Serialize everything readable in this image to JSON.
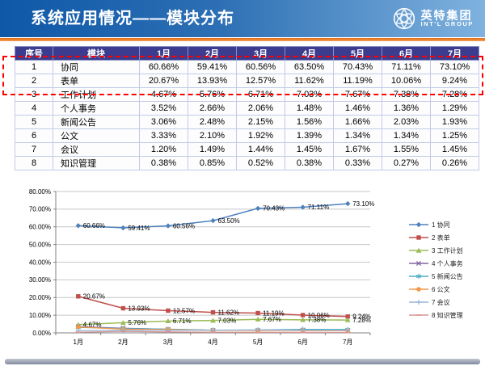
{
  "header": {
    "title": "系统应用情况——模块分布",
    "logo": {
      "company": "英特集团",
      "subtitle": "INT'L GROUP"
    }
  },
  "table": {
    "columns": [
      "序号",
      "模块",
      "1月",
      "2月",
      "3月",
      "4月",
      "5月",
      "6月",
      "7月"
    ],
    "rows": [
      {
        "no": "1",
        "module": "协同",
        "values": [
          "60.66%",
          "59.41%",
          "60.56%",
          "63.50%",
          "70.43%",
          "71.11%",
          "73.10%"
        ]
      },
      {
        "no": "2",
        "module": "表单",
        "values": [
          "20.67%",
          "13.93%",
          "12.57%",
          "11.62%",
          "11.19%",
          "10.06%",
          "9.24%"
        ]
      },
      {
        "no": "3",
        "module": "工作计划",
        "values": [
          "4.67%",
          "5.76%",
          "6.71%",
          "7.03%",
          "7.67%",
          "7.38%",
          "7.28%"
        ]
      },
      {
        "no": "4",
        "module": "个人事务",
        "values": [
          "3.52%",
          "2.66%",
          "2.06%",
          "1.48%",
          "1.46%",
          "1.36%",
          "1.29%"
        ]
      },
      {
        "no": "5",
        "module": "新闻公告",
        "values": [
          "3.06%",
          "2.48%",
          "2.15%",
          "1.56%",
          "1.66%",
          "2.03%",
          "1.93%"
        ]
      },
      {
        "no": "6",
        "module": "公文",
        "values": [
          "3.33%",
          "2.10%",
          "1.92%",
          "1.39%",
          "1.34%",
          "1.34%",
          "1.25%"
        ]
      },
      {
        "no": "7",
        "module": "会议",
        "values": [
          "1.20%",
          "1.49%",
          "1.44%",
          "1.45%",
          "1.67%",
          "1.55%",
          "1.45%"
        ]
      },
      {
        "no": "8",
        "module": "知识管理",
        "values": [
          "0.38%",
          "0.85%",
          "0.52%",
          "0.38%",
          "0.33%",
          "0.27%",
          "0.26%"
        ]
      }
    ],
    "highlighted_rows": [
      1,
      2
    ]
  },
  "chart_data": {
    "type": "line",
    "x": [
      "1月",
      "2月",
      "3月",
      "4月",
      "5月",
      "6月",
      "7月"
    ],
    "ylim": [
      0,
      80
    ],
    "ytick_step": 10,
    "ytick_suffix": "%",
    "grid": true,
    "legend_position": "right",
    "series": [
      {
        "name": "1 协同",
        "color": "#4F81BD",
        "marker": "diamond",
        "show_labels": true,
        "values": [
          60.66,
          59.41,
          60.56,
          63.5,
          70.43,
          71.11,
          73.1
        ]
      },
      {
        "name": "2 表单",
        "color": "#C0504D",
        "marker": "square",
        "show_labels": true,
        "values": [
          20.67,
          13.93,
          12.57,
          11.62,
          11.19,
          10.06,
          9.24
        ]
      },
      {
        "name": "3 工作计划",
        "color": "#9BBB59",
        "marker": "triangle",
        "show_labels": true,
        "values": [
          4.67,
          5.76,
          6.71,
          7.03,
          7.67,
          7.38,
          7.28
        ]
      },
      {
        "name": "4 个人事务",
        "color": "#8064A2",
        "marker": "x",
        "show_labels": false,
        "values": [
          3.52,
          2.66,
          2.06,
          1.48,
          1.46,
          1.36,
          1.29
        ]
      },
      {
        "name": "5 新闻公告",
        "color": "#4BACC6",
        "marker": "asterisk",
        "show_labels": false,
        "values": [
          3.06,
          2.48,
          2.15,
          1.56,
          1.66,
          2.03,
          1.93
        ]
      },
      {
        "name": "6 公文",
        "color": "#F79646",
        "marker": "circle",
        "show_labels": false,
        "values": [
          3.33,
          2.1,
          1.92,
          1.39,
          1.34,
          1.34,
          1.25
        ]
      },
      {
        "name": "7 会议",
        "color": "#95B3D7",
        "marker": "plus",
        "show_labels": false,
        "values": [
          1.2,
          1.49,
          1.44,
          1.45,
          1.67,
          1.55,
          1.45
        ]
      },
      {
        "name": "8 知识管理",
        "color": "#D99694",
        "marker": "dash",
        "show_labels": false,
        "values": [
          0.38,
          0.85,
          0.52,
          0.38,
          0.33,
          0.27,
          0.26
        ]
      }
    ]
  },
  "colors": {
    "header_gradient_left": "#0E58A8",
    "header_gradient_right": "#7FB2DF",
    "accent_line": "#E2690D",
    "table_header_bg": "#3B3B8F",
    "highlight_border": "#FF0000",
    "footer_from": "#C2C7D0",
    "footer_to": "#808B9E"
  }
}
